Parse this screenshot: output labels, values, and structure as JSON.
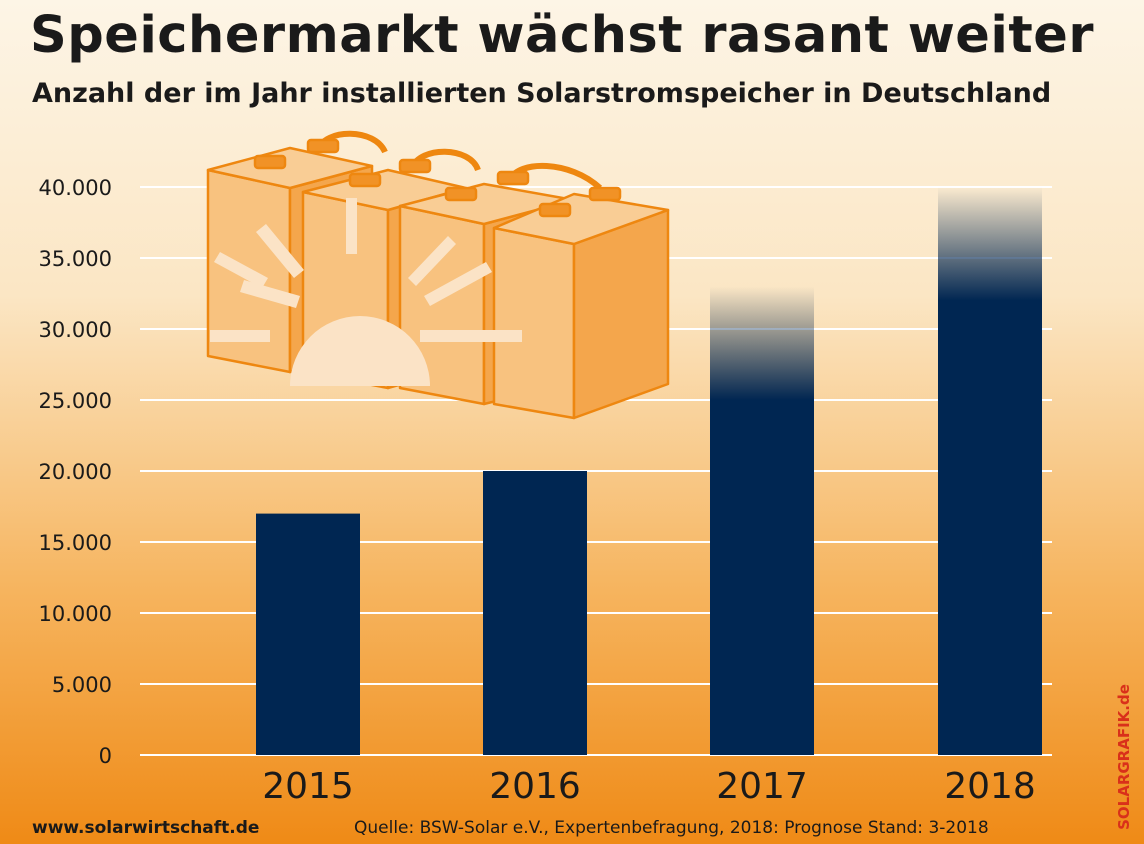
{
  "title": "Speichermarkt wächst rasant weiter",
  "subtitle": "Anzahl der im Jahr installierten Solarstromspeicher in Deutschland",
  "footer": {
    "website": "www.solarwirtschaft.de",
    "source": "Quelle: BSW-Solar e.V., Expertenbefragung,  2018: Prognose Stand: 3-2018",
    "brand": "SOLARGRAFIK.de"
  },
  "colors": {
    "bar": "#002652",
    "grid": "#ffffff",
    "illustration_fill": "#f6b262",
    "illustration_stroke": "#ee8710",
    "sun": "#fbe3c6",
    "brand": "#d9301a"
  },
  "chart_data": {
    "type": "bar",
    "categories": [
      "2015",
      "2016",
      "2017",
      "2018"
    ],
    "values": [
      17000,
      20000,
      33000,
      40000
    ],
    "fade_from": [
      null,
      null,
      25000,
      32000
    ],
    "ylim": [
      0,
      40000
    ],
    "yticks": [
      "0",
      "5.000",
      "10.000",
      "15.000",
      "20.000",
      "25.000",
      "30.000",
      "35.000",
      "40.000"
    ],
    "xlabel": "",
    "ylabel": "",
    "grid": true,
    "legend": "none"
  }
}
